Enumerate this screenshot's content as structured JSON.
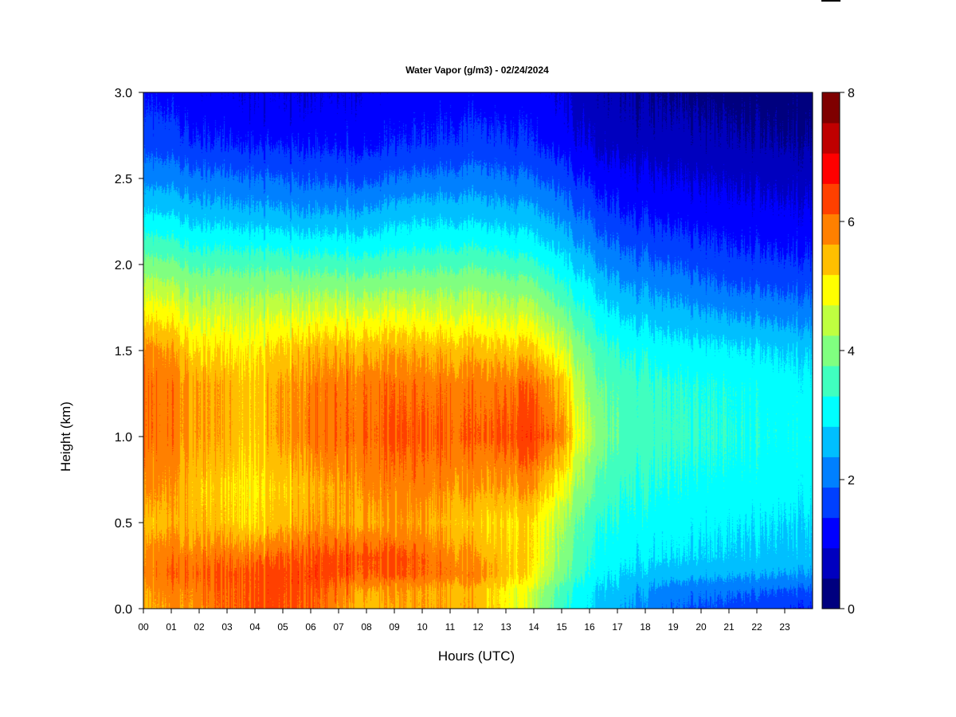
{
  "chart_data": {
    "type": "heatmap",
    "title": "Water Vapor (g/m3) - 02/24/2024",
    "xlabel": "Hours (UTC)",
    "ylabel": "Height (km)",
    "xlim": [
      0,
      24
    ],
    "ylim": [
      0.0,
      3.0
    ],
    "x_tick_labels": [
      "00",
      "01",
      "02",
      "03",
      "04",
      "05",
      "06",
      "07",
      "08",
      "09",
      "10",
      "11",
      "12",
      "13",
      "14",
      "15",
      "16",
      "17",
      "18",
      "19",
      "20",
      "21",
      "22",
      "23"
    ],
    "y_tick_labels": [
      "0.0",
      "0.5",
      "1.0",
      "1.5",
      "2.0",
      "2.5",
      "3.0"
    ],
    "y_ticks": [
      0.0,
      0.5,
      1.0,
      1.5,
      2.0,
      2.5,
      3.0
    ],
    "colorbar": {
      "min": 0,
      "max": 8,
      "tick_values": [
        0,
        2,
        4,
        6,
        8
      ],
      "tick_labels": [
        "0",
        "2",
        "4",
        "6",
        "8"
      ],
      "levels": [
        0,
        0.5,
        1,
        1.5,
        2,
        2.5,
        3,
        3.5,
        4,
        4.5,
        5,
        5.5,
        6,
        6.5,
        7,
        7.5,
        8
      ],
      "colors": [
        "#00007F",
        "#0000BF",
        "#0000FF",
        "#0040FF",
        "#0080FF",
        "#00BFFF",
        "#00FFFF",
        "#40FFBF",
        "#80FF80",
        "#BFFF40",
        "#FFFF00",
        "#FFBF00",
        "#FF8000",
        "#FF4000",
        "#FF0000",
        "#BF0000",
        "#7F0000"
      ]
    },
    "heights_km": [
      0.0,
      0.1,
      0.2,
      0.3,
      0.5,
      0.7,
      1.0,
      1.3,
      1.5,
      1.7,
      1.9,
      2.1,
      2.3,
      2.5,
      2.7,
      2.9,
      3.0
    ],
    "hours_utc": [
      0,
      2,
      4,
      6,
      8,
      10,
      12,
      14,
      15,
      16,
      17,
      19,
      21,
      24
    ],
    "values_g_m3": [
      [
        5.8,
        6.3,
        6.6,
        6.5,
        5.8,
        5.9,
        5.9,
        4.7,
        3.6,
        3.0,
        2.6,
        2.0,
        1.8,
        1.5
      ],
      [
        5.9,
        6.4,
        6.6,
        6.6,
        6.0,
        5.9,
        5.8,
        4.8,
        3.8,
        3.1,
        2.8,
        2.2,
        2.1,
        1.9
      ],
      [
        6.2,
        6.6,
        6.6,
        6.7,
        6.6,
        6.4,
        6.2,
        5.3,
        4.2,
        3.4,
        3.0,
        2.7,
        2.6,
        2.5
      ],
      [
        6.1,
        6.4,
        6.3,
        6.6,
        6.7,
        6.4,
        6.0,
        5.4,
        4.4,
        3.5,
        3.2,
        3.0,
        2.9,
        2.8
      ],
      [
        5.7,
        5.9,
        5.4,
        6.0,
        6.0,
        5.9,
        5.6,
        5.4,
        4.6,
        3.7,
        3.4,
        3.2,
        3.1,
        3.0
      ],
      [
        6.1,
        5.8,
        5.3,
        5.8,
        6.2,
        6.2,
        6.0,
        6.0,
        5.2,
        4.1,
        3.6,
        3.4,
        3.3,
        3.2
      ],
      [
        6.4,
        6.1,
        5.6,
        6.3,
        6.5,
        6.5,
        6.5,
        6.8,
        6.2,
        4.6,
        3.9,
        3.6,
        3.5,
        3.3
      ],
      [
        6.4,
        6.1,
        5.6,
        6.2,
        6.4,
        6.3,
        6.3,
        6.4,
        5.8,
        4.3,
        3.8,
        3.5,
        3.4,
        3.2
      ],
      [
        6.2,
        5.6,
        5.3,
        5.8,
        5.9,
        5.8,
        5.8,
        5.6,
        5.0,
        4.0,
        3.5,
        3.2,
        3.1,
        2.9
      ],
      [
        5.4,
        5.0,
        4.8,
        5.0,
        5.1,
        5.0,
        5.0,
        4.8,
        4.2,
        3.5,
        3.0,
        2.7,
        2.5,
        2.3
      ],
      [
        4.6,
        4.3,
        4.2,
        4.2,
        4.2,
        4.2,
        4.3,
        4.0,
        3.5,
        3.0,
        2.5,
        2.2,
        1.9,
        1.8
      ],
      [
        3.8,
        3.5,
        3.4,
        3.3,
        3.3,
        3.4,
        3.5,
        3.2,
        2.9,
        2.4,
        2.0,
        1.7,
        1.5,
        1.4
      ],
      [
        3.0,
        2.8,
        2.6,
        2.5,
        2.6,
        2.8,
        2.8,
        2.6,
        2.3,
        1.9,
        1.5,
        1.3,
        1.2,
        1.1
      ],
      [
        2.3,
        2.2,
        2.0,
        1.9,
        1.9,
        2.1,
        2.2,
        2.0,
        1.8,
        1.4,
        1.2,
        1.0,
        0.9,
        0.8
      ],
      [
        1.8,
        1.6,
        1.4,
        1.4,
        1.4,
        1.5,
        1.7,
        1.5,
        1.3,
        1.0,
        0.8,
        0.7,
        0.6,
        0.5
      ],
      [
        1.5,
        1.3,
        1.1,
        1.1,
        1.2,
        1.3,
        1.4,
        1.3,
        1.1,
        0.8,
        0.6,
        0.5,
        0.4,
        0.3
      ],
      [
        1.4,
        1.2,
        1.0,
        1.0,
        1.1,
        1.2,
        1.3,
        1.2,
        1.0,
        0.7,
        0.6,
        0.4,
        0.3,
        0.3
      ]
    ]
  }
}
